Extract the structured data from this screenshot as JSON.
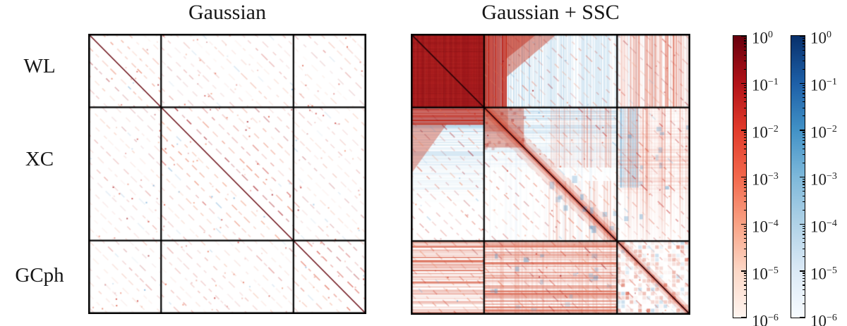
{
  "figure": {
    "panels": [
      {
        "title": "Gaussian"
      },
      {
        "title": "Gaussian + SSC"
      }
    ],
    "row_labels": [
      "WL",
      "XC",
      "GCph"
    ]
  },
  "chart_data": {
    "type": "heatmap",
    "subtype": "correlation-matrix comparison with 3x3 probe blocks",
    "panel_titles": [
      "Gaussian",
      "Gaussian + SSC"
    ],
    "row_block_labels": [
      "WL",
      "XC",
      "GCph"
    ],
    "col_block_labels": [
      "WL",
      "XC",
      "GCph"
    ],
    "block_fractions": [
      0.262,
      0.476,
      0.262
    ],
    "value_encoding": {
      "positive": "red colormap",
      "negative": "blue colormap",
      "scale": "log of |correlation|",
      "vmax": 1,
      "vmin": 1e-06
    },
    "colorbar": {
      "scale": "log",
      "tick_exponents": [
        0,
        -1,
        -2,
        -3,
        -4,
        -5,
        -6
      ],
      "tick_labels": [
        "10^0",
        "10^-1",
        "10^-2",
        "10^-3",
        "10^-4",
        "10^-5",
        "10^-6"
      ],
      "red_stops": [
        {
          "p": 0,
          "c": "#67000d"
        },
        {
          "p": 16.7,
          "c": "#b11218"
        },
        {
          "p": 33.3,
          "c": "#e13b2b"
        },
        {
          "p": 50,
          "c": "#f2684c"
        },
        {
          "p": 66.7,
          "c": "#f9a284"
        },
        {
          "p": 83.3,
          "c": "#fcd7c6"
        },
        {
          "p": 100,
          "c": "#fff5f0"
        }
      ],
      "blue_stops": [
        {
          "p": 0,
          "c": "#08306b"
        },
        {
          "p": 16.7,
          "c": "#1d5fa7"
        },
        {
          "p": 33.3,
          "c": "#4191c6"
        },
        {
          "p": 50,
          "c": "#7db8da"
        },
        {
          "p": 66.7,
          "c": "#b0d2e7"
        },
        {
          "p": 83.3,
          "c": "#dbe9f6"
        },
        {
          "p": 100,
          "c": "#f7fbff"
        }
      ]
    },
    "panels": [
      {
        "title": "Gaussian",
        "blocks": {
          "WLxWL": "unit diagonal (dark red = 1) plus dashed red sub-diagonals ~1e-1 to 1e-3, white background",
          "WLxXC": "sparse dashed red diagonals and dots ~1e-2 to 1e-4, few blue dashes",
          "WLxGCph": "very sparse faint red dashes ~1e-3 to 1e-5",
          "XCxXC": "unit diagonal plus parallel dashed red sub-diagonals",
          "XCxGCph": "sparse dashed red diagonals with occasional blue segments",
          "GCphxGCph": "unit diagonal plus dashed red sub-diagonals"
        }
      },
      {
        "title": "Gaussian + SSC",
        "blocks": {
          "WLxWL": "fully correlated saturated dark red block ~1e0 to 1e-1 with darker grid texture and diagonal",
          "WLxXC": "strong red columns at first XC bins fading into blue anti-correlated striped region with red dashed diagonals",
          "WLxGCph": "red vertical stripes ~1e-2 to 1e-4 with red dashed diagonals",
          "XCxWL": "red top rows fading into blue horizontal stripes, whitening toward bottom",
          "XCxXC": "red band along unit diagonal, blue striped upper region, red top-left corner patch, red/blue checker lower right",
          "XCxGCph": "mixed red/blue vertical-stripe checker, blue cluster at left, fading toward bottom",
          "GCphxWL": "red horizontal stripes ~1e-2 to 1e-3 with dashed diagonals",
          "GCphxXC": "red/blue checker over red horizontal stripes",
          "GCphxGCph": "red checker with blue patches and dark unit diagonal"
        }
      }
    ],
    "colors": {
      "dark_red": "#67000d",
      "red": "#cb181d",
      "salmon": "#f2684c",
      "light_red_end": "#fff5f0",
      "dark_blue": "#08306b",
      "blue": "#4191c6",
      "light_blue_end": "#f7fbff",
      "frame": "#000000",
      "background": "#ffffff"
    }
  }
}
